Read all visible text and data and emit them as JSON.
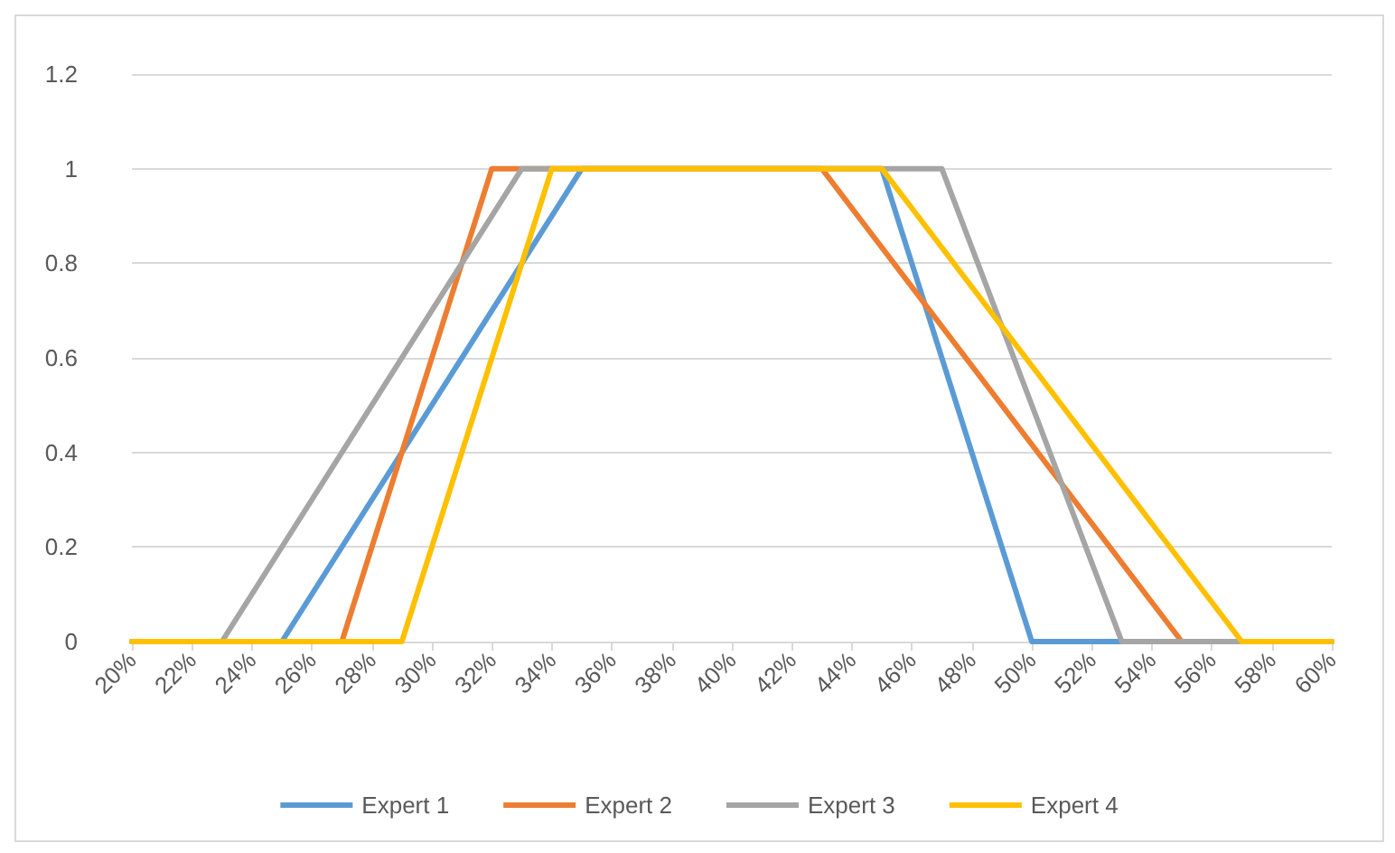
{
  "chart_data": {
    "type": "line",
    "xlim": [
      20,
      60
    ],
    "xticks": [
      {
        "value": 20,
        "label": "20%"
      },
      {
        "value": 22,
        "label": "22%"
      },
      {
        "value": 24,
        "label": "24%"
      },
      {
        "value": 26,
        "label": "26%"
      },
      {
        "value": 28,
        "label": "28%"
      },
      {
        "value": 30,
        "label": "30%"
      },
      {
        "value": 32,
        "label": "32%"
      },
      {
        "value": 34,
        "label": "34%"
      },
      {
        "value": 36,
        "label": "36%"
      },
      {
        "value": 38,
        "label": "38%"
      },
      {
        "value": 40,
        "label": "40%"
      },
      {
        "value": 42,
        "label": "42%"
      },
      {
        "value": 44,
        "label": "44%"
      },
      {
        "value": 46,
        "label": "46%"
      },
      {
        "value": 48,
        "label": "48%"
      },
      {
        "value": 50,
        "label": "50%"
      },
      {
        "value": 52,
        "label": "52%"
      },
      {
        "value": 54,
        "label": "54%"
      },
      {
        "value": 56,
        "label": "56%"
      },
      {
        "value": 58,
        "label": "58%"
      },
      {
        "value": 60,
        "label": "60%"
      }
    ],
    "ylim": [
      0,
      1.2
    ],
    "yticks": [
      0,
      0.2,
      0.4,
      0.6,
      0.8,
      1,
      1.2
    ],
    "series": [
      {
        "name": "Expert 1",
        "color": "#5b9bd5",
        "x": [
          20,
          25,
          35,
          45,
          50,
          60
        ],
        "values": [
          0,
          0,
          1,
          1,
          0,
          0
        ]
      },
      {
        "name": "Expert 2",
        "color": "#ed7d31",
        "x": [
          20,
          27,
          32,
          43,
          55,
          60
        ],
        "values": [
          0,
          0,
          1,
          1,
          0,
          0
        ]
      },
      {
        "name": "Expert 3",
        "color": "#a5a5a5",
        "x": [
          20,
          23,
          33,
          47,
          53,
          60
        ],
        "values": [
          0,
          0,
          1,
          1,
          0,
          0
        ]
      },
      {
        "name": "Expert 4",
        "color": "#ffc000",
        "x": [
          20,
          29,
          34,
          45,
          57,
          60
        ],
        "values": [
          0,
          0,
          1,
          1,
          0,
          0
        ]
      }
    ],
    "grid": "y",
    "legend": "bottom",
    "marker": "none",
    "line_style": "solid"
  }
}
